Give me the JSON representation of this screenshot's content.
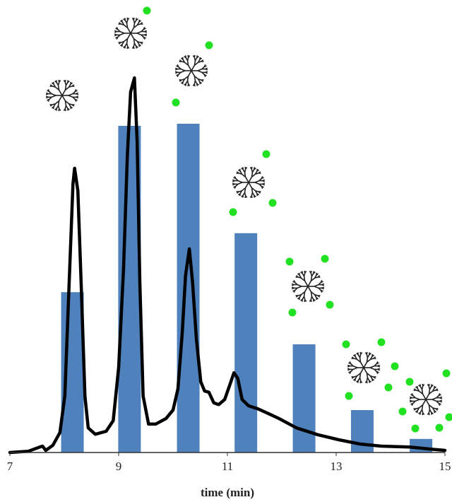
{
  "chart_data": {
    "type": "bar",
    "x_label": "time (min)",
    "xlim": [
      7,
      15
    ],
    "xticks": [
      7,
      9,
      11,
      13,
      15
    ],
    "ylim": [
      0,
      100
    ],
    "bars": {
      "color": "#4f81bd",
      "x": [
        8.15,
        9.2,
        10.28,
        11.34,
        12.41,
        13.48,
        14.56
      ],
      "values": [
        37.8,
        77,
        77.5,
        51.7,
        25.5,
        10,
        3.2
      ]
    },
    "line": {
      "color": "#000000",
      "x": [
        7.0,
        7.34,
        7.53,
        7.6,
        7.66,
        7.79,
        7.92,
        8.01,
        8.09,
        8.16,
        8.19,
        8.25,
        8.31,
        8.38,
        8.44,
        8.57,
        8.77,
        8.9,
        9.0,
        9.09,
        9.16,
        9.22,
        9.29,
        9.34,
        9.39,
        9.45,
        9.55,
        9.68,
        9.87,
        10.0,
        10.09,
        10.17,
        10.23,
        10.3,
        10.36,
        10.43,
        10.51,
        10.58,
        10.66,
        10.75,
        10.84,
        10.95,
        11.04,
        11.12,
        11.19,
        11.27,
        11.39,
        11.56,
        11.75,
        11.95,
        12.27,
        12.66,
        13.05,
        13.44,
        13.83,
        14.35,
        14.74,
        15.0
      ],
      "values": [
        0,
        0.3,
        1.2,
        1.5,
        0.5,
        1.7,
        4.7,
        13.3,
        40,
        63.3,
        67,
        61.7,
        40,
        13.3,
        5.8,
        4.3,
        5,
        7.5,
        20,
        43.3,
        70,
        85,
        88.3,
        73.3,
        40,
        13.3,
        6.7,
        6.7,
        8,
        10,
        15,
        28.3,
        41.7,
        48,
        40,
        26.7,
        16.7,
        14.5,
        14.2,
        11.7,
        11.3,
        12.5,
        15.8,
        18.8,
        17.5,
        12.5,
        11,
        10.3,
        9.2,
        8,
        5.8,
        4.2,
        3,
        2,
        1.5,
        1.3,
        0.8,
        0.5
      ]
    }
  }
}
